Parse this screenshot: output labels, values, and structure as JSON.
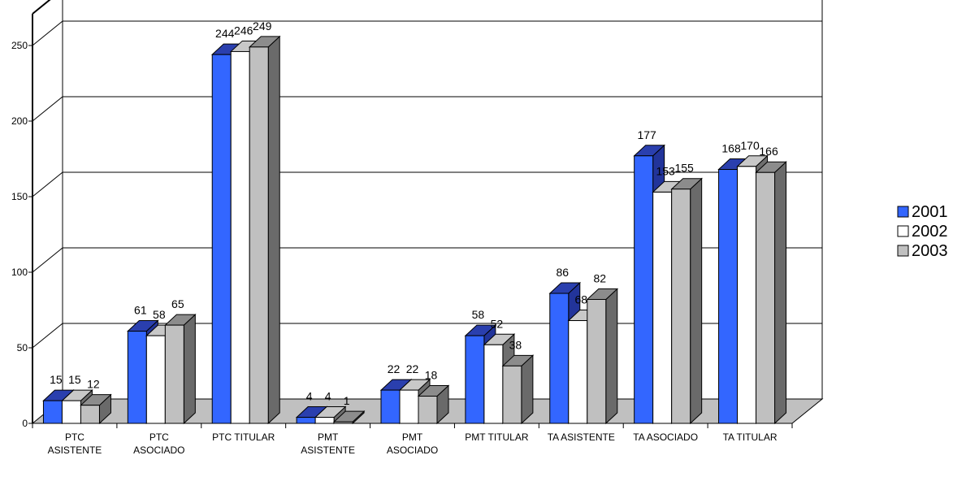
{
  "chart_data": {
    "type": "bar",
    "categories": [
      "PTC ASISTENTE",
      "PTC ASOCIADO",
      "PTC TITULAR",
      "PMT ASISTENTE",
      "PMT ASOCIADO",
      "PMT TITULAR",
      "TA ASISTENTE",
      "TA ASOCIADO",
      "TA TITULAR"
    ],
    "category_lines": [
      [
        "PTC",
        "ASISTENTE"
      ],
      [
        "PTC",
        "ASOCIADO"
      ],
      [
        "PTC TITULAR"
      ],
      [
        "PMT",
        "ASISTENTE"
      ],
      [
        "PMT",
        "ASOCIADO"
      ],
      [
        "PMT TITULAR"
      ],
      [
        "TA ASISTENTE"
      ],
      [
        "TA ASOCIADO"
      ],
      [
        "TA TITULAR"
      ]
    ],
    "series": [
      {
        "name": "2001",
        "values": [
          15,
          61,
          244,
          4,
          22,
          58,
          86,
          177,
          168
        ],
        "color": "#3366ff",
        "top_color": "#2a3fae",
        "side_color": "#22349a"
      },
      {
        "name": "2002",
        "values": [
          15,
          58,
          246,
          4,
          22,
          52,
          68,
          153,
          170
        ],
        "color": "#ffffff",
        "top_color": "#c8c8c8",
        "side_color": "#6e6e6e"
      },
      {
        "name": "2003",
        "values": [
          12,
          65,
          249,
          1,
          18,
          38,
          82,
          155,
          166
        ],
        "color": "#c0c0c0",
        "top_color": "#8c8c8c",
        "side_color": "#6a6a6a"
      }
    ],
    "y_ticks": [
      "0",
      "50",
      "100",
      "150",
      "200",
      "250"
    ],
    "ylim": [
      0,
      250
    ],
    "title": "",
    "xlabel": "",
    "ylabel": "",
    "grid": true,
    "legend_position": "right",
    "floor_color": "#c0c0c0"
  }
}
